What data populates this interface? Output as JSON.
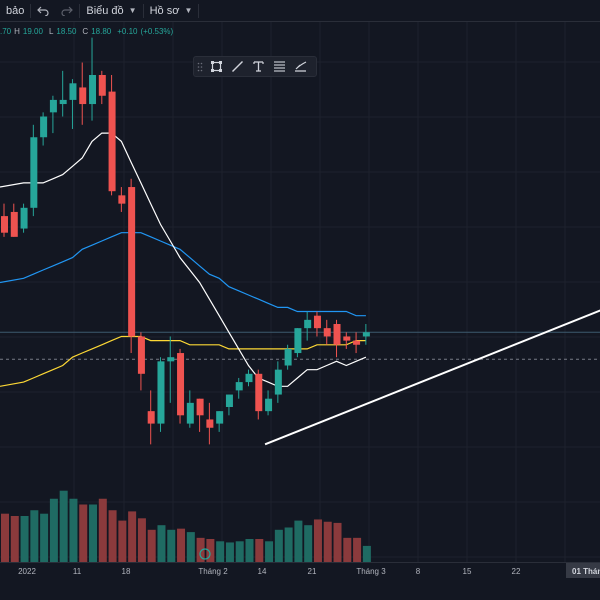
{
  "toolbar": {
    "indicators_label": "bảo",
    "undo_icon": "undo-icon",
    "redo_icon": "redo-icon",
    "chart_menu_label": "Biểu đồ",
    "profile_menu_label": "Hồ sơ"
  },
  "legend": {
    "open_value": ".70",
    "high_label": "H",
    "high_value": "19.00",
    "low_label": "L",
    "low_value": "18.50",
    "close_label": "C",
    "close_value": "18.80",
    "change_value": "+0.10",
    "change_pct": "(+0.53%)"
  },
  "drawing_toolbar": {
    "tools": [
      "grip-icon",
      "rectangle-icon",
      "trendline-icon",
      "text-icon",
      "fib-icon",
      "brush-icon"
    ]
  },
  "x_axis": {
    "date_label": "01 Tháng"
  },
  "colors": {
    "up": "#26a69a",
    "down": "#ef5350",
    "ma_fast": "#ffffff",
    "ma_mid": "#2196f3",
    "ma_slow": "#fdd835",
    "background": "#131722"
  },
  "chart_data": {
    "type": "candlestick",
    "x_tick_labels": [
      "2022",
      "11",
      "18",
      "Tháng 2",
      "14",
      "21",
      "Tháng 3",
      "8",
      "15",
      "22"
    ],
    "candles": [
      {
        "o": 21.6,
        "h": 21.9,
        "l": 21.1,
        "c": 21.2
      },
      {
        "o": 21.7,
        "h": 21.9,
        "l": 21.1,
        "c": 21.1
      },
      {
        "o": 21.3,
        "h": 21.9,
        "l": 21.2,
        "c": 21.8
      },
      {
        "o": 21.8,
        "h": 23.8,
        "l": 21.6,
        "c": 23.5
      },
      {
        "o": 23.5,
        "h": 24.1,
        "l": 23.3,
        "c": 24.0
      },
      {
        "o": 24.1,
        "h": 24.5,
        "l": 23.6,
        "c": 24.4
      },
      {
        "o": 24.3,
        "h": 25.1,
        "l": 24.0,
        "c": 24.4
      },
      {
        "o": 24.4,
        "h": 24.9,
        "l": 23.7,
        "c": 24.8
      },
      {
        "o": 24.7,
        "h": 25.3,
        "l": 23.8,
        "c": 24.3
      },
      {
        "o": 24.3,
        "h": 25.9,
        "l": 23.9,
        "c": 25.0
      },
      {
        "o": 25.0,
        "h": 25.1,
        "l": 24.3,
        "c": 24.5
      },
      {
        "o": 24.6,
        "h": 25.0,
        "l": 22.1,
        "c": 22.2
      },
      {
        "o": 22.1,
        "h": 22.3,
        "l": 21.7,
        "c": 21.9
      },
      {
        "o": 22.3,
        "h": 22.5,
        "l": 18.3,
        "c": 18.7
      },
      {
        "o": 18.7,
        "h": 18.8,
        "l": 17.4,
        "c": 17.8
      },
      {
        "o": 16.9,
        "h": 17.4,
        "l": 16.1,
        "c": 16.6
      },
      {
        "o": 16.6,
        "h": 18.2,
        "l": 16.4,
        "c": 18.1
      },
      {
        "o": 18.1,
        "h": 18.7,
        "l": 17.1,
        "c": 18.2
      },
      {
        "o": 18.3,
        "h": 18.4,
        "l": 16.6,
        "c": 16.8
      },
      {
        "o": 16.6,
        "h": 17.4,
        "l": 16.5,
        "c": 17.1
      },
      {
        "o": 17.2,
        "h": 17.2,
        "l": 16.4,
        "c": 16.8
      },
      {
        "o": 16.7,
        "h": 17.1,
        "l": 16.1,
        "c": 16.5
      },
      {
        "o": 16.6,
        "h": 16.9,
        "l": 16.4,
        "c": 16.9
      },
      {
        "o": 17.0,
        "h": 17.3,
        "l": 16.8,
        "c": 17.3
      },
      {
        "o": 17.4,
        "h": 17.7,
        "l": 17.2,
        "c": 17.6
      },
      {
        "o": 17.6,
        "h": 17.9,
        "l": 17.5,
        "c": 17.8
      },
      {
        "o": 17.8,
        "h": 17.9,
        "l": 16.7,
        "c": 16.9
      },
      {
        "o": 16.9,
        "h": 17.4,
        "l": 16.8,
        "c": 17.2
      },
      {
        "o": 17.3,
        "h": 18.1,
        "l": 17.1,
        "c": 17.9
      },
      {
        "o": 18.0,
        "h": 18.5,
        "l": 17.9,
        "c": 18.4
      },
      {
        "o": 18.3,
        "h": 18.9,
        "l": 18.2,
        "c": 18.9
      },
      {
        "o": 18.9,
        "h": 19.3,
        "l": 18.6,
        "c": 19.1
      },
      {
        "o": 19.2,
        "h": 19.3,
        "l": 18.7,
        "c": 18.9
      },
      {
        "o": 18.9,
        "h": 19.1,
        "l": 18.5,
        "c": 18.7
      },
      {
        "o": 19.0,
        "h": 19.1,
        "l": 18.2,
        "c": 18.5
      },
      {
        "o": 18.7,
        "h": 18.8,
        "l": 18.4,
        "c": 18.6
      },
      {
        "o": 18.6,
        "h": 18.8,
        "l": 18.3,
        "c": 18.5
      },
      {
        "o": 18.7,
        "h": 19.0,
        "l": 18.5,
        "c": 18.8
      }
    ],
    "volume": [
      42,
      40,
      40,
      45,
      42,
      55,
      62,
      55,
      50,
      50,
      55,
      45,
      36,
      44,
      38,
      28,
      32,
      28,
      29,
      26,
      21,
      20,
      18,
      17,
      18,
      20,
      20,
      18,
      28,
      30,
      36,
      32,
      37,
      35,
      34,
      21,
      21,
      14
    ],
    "ma_fast": [
      null,
      null,
      22.4,
      22.4,
      22.4,
      22.5,
      22.6,
      22.8,
      23.0,
      23.4,
      23.6,
      23.6,
      23.4,
      22.9,
      22.4,
      21.9,
      21.4,
      21.0,
      20.6,
      20.3,
      20.0,
      19.6,
      19.2,
      18.8,
      18.4,
      18.0,
      17.7,
      17.6,
      17.5,
      17.5,
      17.7,
      17.9,
      17.9,
      18.0,
      18.1,
      18.0,
      18.1,
      18.2
    ],
    "ma_mid": [
      null,
      null,
      20.1,
      20.2,
      20.3,
      20.4,
      20.5,
      20.6,
      20.8,
      20.9,
      21.0,
      21.1,
      21.2,
      21.2,
      21.2,
      21.1,
      21.0,
      20.9,
      20.8,
      20.6,
      20.4,
      20.2,
      20.1,
      19.9,
      19.8,
      19.7,
      19.6,
      19.5,
      19.4,
      19.4,
      19.3,
      19.3,
      19.3,
      19.3,
      19.3,
      19.3,
      19.2,
      19.2
    ],
    "ma_slow": [
      null,
      null,
      17.6,
      17.7,
      17.8,
      17.9,
      18.0,
      18.2,
      18.3,
      18.4,
      18.5,
      18.6,
      18.7,
      18.7,
      18.7,
      18.6,
      18.6,
      18.6,
      18.6,
      18.5,
      18.5,
      18.5,
      18.5,
      18.4,
      18.4,
      18.4,
      18.4,
      18.4,
      18.4,
      18.4,
      18.4,
      18.4,
      18.5,
      18.5,
      18.5,
      18.5,
      18.6,
      18.6
    ],
    "trendline": {
      "start": {
        "x": 27,
        "y": 16.1
      },
      "end": {
        "x": 78,
        "y": 20.9
      }
    },
    "dashed_price": 18.15,
    "solid_price": 18.8
  }
}
